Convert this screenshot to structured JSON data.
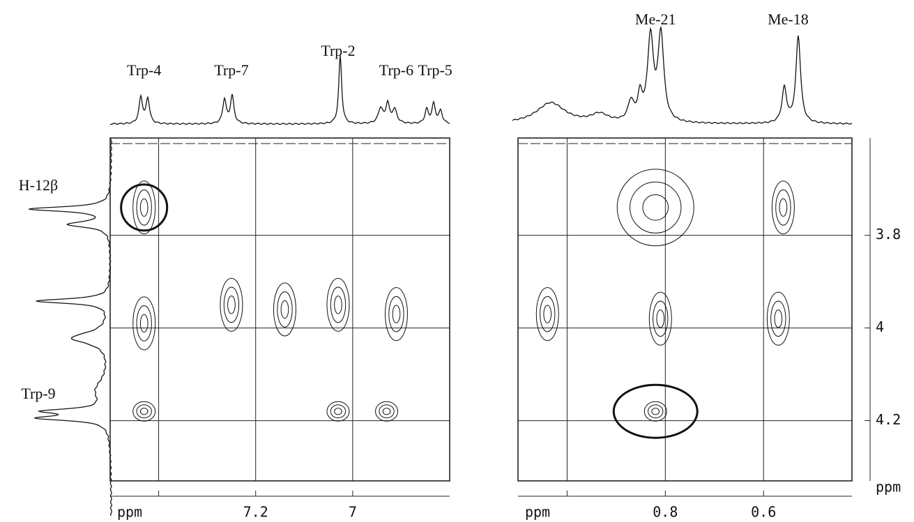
{
  "chart_data": [
    {
      "type": "nmr2d",
      "peak_labels": [
        {
          "text": "Trp-4",
          "x": 7.43
        },
        {
          "text": "Trp-7",
          "x": 7.25
        },
        {
          "text": "Trp-2",
          "x": 7.03
        },
        {
          "text": "Trp-6",
          "x": 6.91
        },
        {
          "text": "Trp-5",
          "x": 6.83
        }
      ],
      "side_labels": [
        {
          "text": "H-12β",
          "y": 3.74
        },
        {
          "text": "Trp-9",
          "y": 4.16
        }
      ],
      "xlim": [
        7.5,
        6.8
      ],
      "xticks": [
        {
          "value": 7.4,
          "label": null
        },
        7.2,
        7.0
      ],
      "xlabel": "ppm",
      "ylim": [
        3.59,
        4.33
      ],
      "yticks": [
        3.8,
        4.0,
        4.2
      ],
      "cross_peaks": {
        "x": [
          7.43,
          7.43,
          7.25,
          7.14,
          7.03,
          6.91,
          7.43,
          7.03,
          6.93
        ],
        "y": [
          3.74,
          3.99,
          3.95,
          3.96,
          3.95,
          3.97,
          4.18,
          4.18,
          4.18
        ],
        "circled": [
          true,
          false,
          false,
          false,
          false,
          false,
          false,
          false,
          false
        ]
      }
    },
    {
      "type": "nmr2d",
      "peak_labels": [
        {
          "text": "Me-21",
          "x": 0.82
        },
        {
          "text": "Me-18",
          "x": 0.55
        }
      ],
      "xlim": [
        1.1,
        0.42
      ],
      "xticks": [
        {
          "value": 1.0,
          "label": null
        },
        0.8,
        0.6
      ],
      "xlabel": "ppm",
      "ylim": [
        3.59,
        4.33
      ],
      "yticks": [
        3.8,
        4.0,
        4.2
      ],
      "ylabel": "ppm",
      "cross_peaks": {
        "x": [
          0.82,
          0.56,
          1.04,
          0.81,
          0.57,
          0.82
        ],
        "y": [
          3.74,
          3.74,
          3.97,
          3.98,
          3.98,
          4.18
        ],
        "circled": [
          false,
          false,
          false,
          false,
          false,
          true
        ]
      }
    }
  ]
}
